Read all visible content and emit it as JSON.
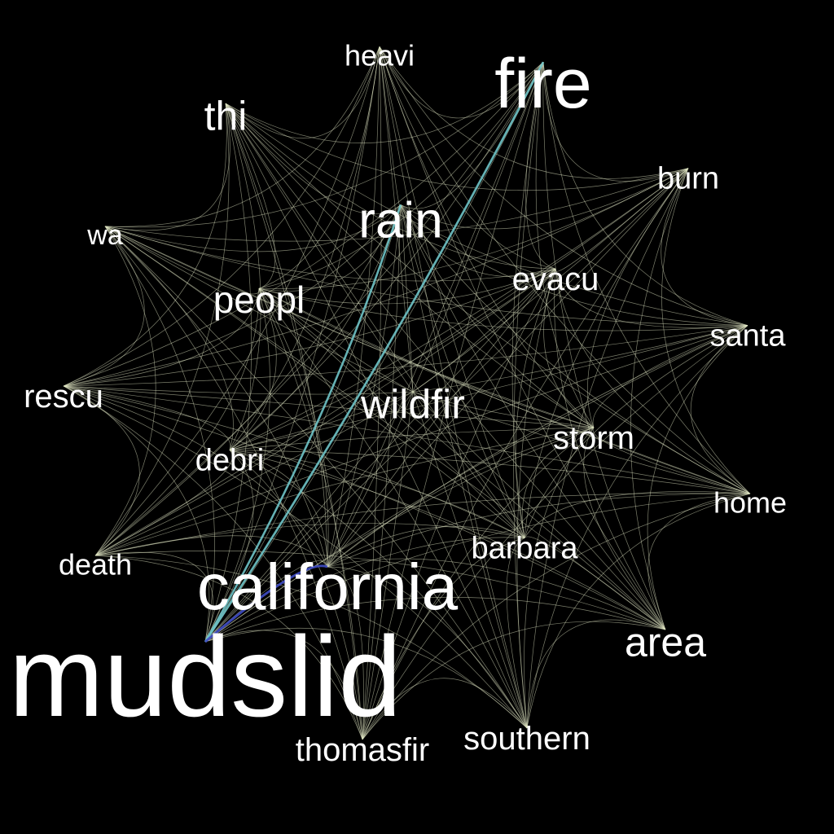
{
  "colors": {
    "background": "#000000",
    "edge": "#e2e8c4",
    "edge_strong": "#6fc4c8",
    "edge_strongest": "#3f4cc4",
    "label": "#ffffff"
  },
  "network": {
    "nodes": [
      {
        "id": "mudslid",
        "label": "mudslid",
        "weight": 100
      },
      {
        "id": "california",
        "label": "california",
        "weight": 50
      },
      {
        "id": "fire",
        "label": "fire",
        "weight": 44
      },
      {
        "id": "rain",
        "label": "rain",
        "weight": 34
      },
      {
        "id": "wildfir",
        "label": "wildfir",
        "weight": 28
      },
      {
        "id": "area",
        "label": "area",
        "weight": 27
      },
      {
        "id": "peopl",
        "label": "peopl",
        "weight": 25
      },
      {
        "id": "thi",
        "label": "thi",
        "weight": 24
      },
      {
        "id": "southern",
        "label": "southern",
        "weight": 22
      },
      {
        "id": "thomasfir",
        "label": "thomasfir",
        "weight": 22
      },
      {
        "id": "evacu",
        "label": "evacu",
        "weight": 20
      },
      {
        "id": "storm",
        "label": "storm",
        "weight": 20
      },
      {
        "id": "barbara",
        "label": "barbara",
        "weight": 19
      },
      {
        "id": "santa",
        "label": "santa",
        "weight": 19
      },
      {
        "id": "rescu",
        "label": "rescu",
        "weight": 19
      },
      {
        "id": "debri",
        "label": "debri",
        "weight": 18
      },
      {
        "id": "burn",
        "label": "burn",
        "weight": 18
      },
      {
        "id": "heavi",
        "label": "heavi",
        "weight": 17
      },
      {
        "id": "home",
        "label": "home",
        "weight": 17
      },
      {
        "id": "death",
        "label": "death",
        "weight": 16
      },
      {
        "id": "wa",
        "label": "wa",
        "weight": 15
      }
    ],
    "strong_edges": [
      {
        "source": "mudslid",
        "target": "fire",
        "strength": 0.85
      },
      {
        "source": "mudslid",
        "target": "rain",
        "strength": 0.8
      },
      {
        "source": "mudslid",
        "target": "california",
        "strength": 1.0
      }
    ]
  }
}
